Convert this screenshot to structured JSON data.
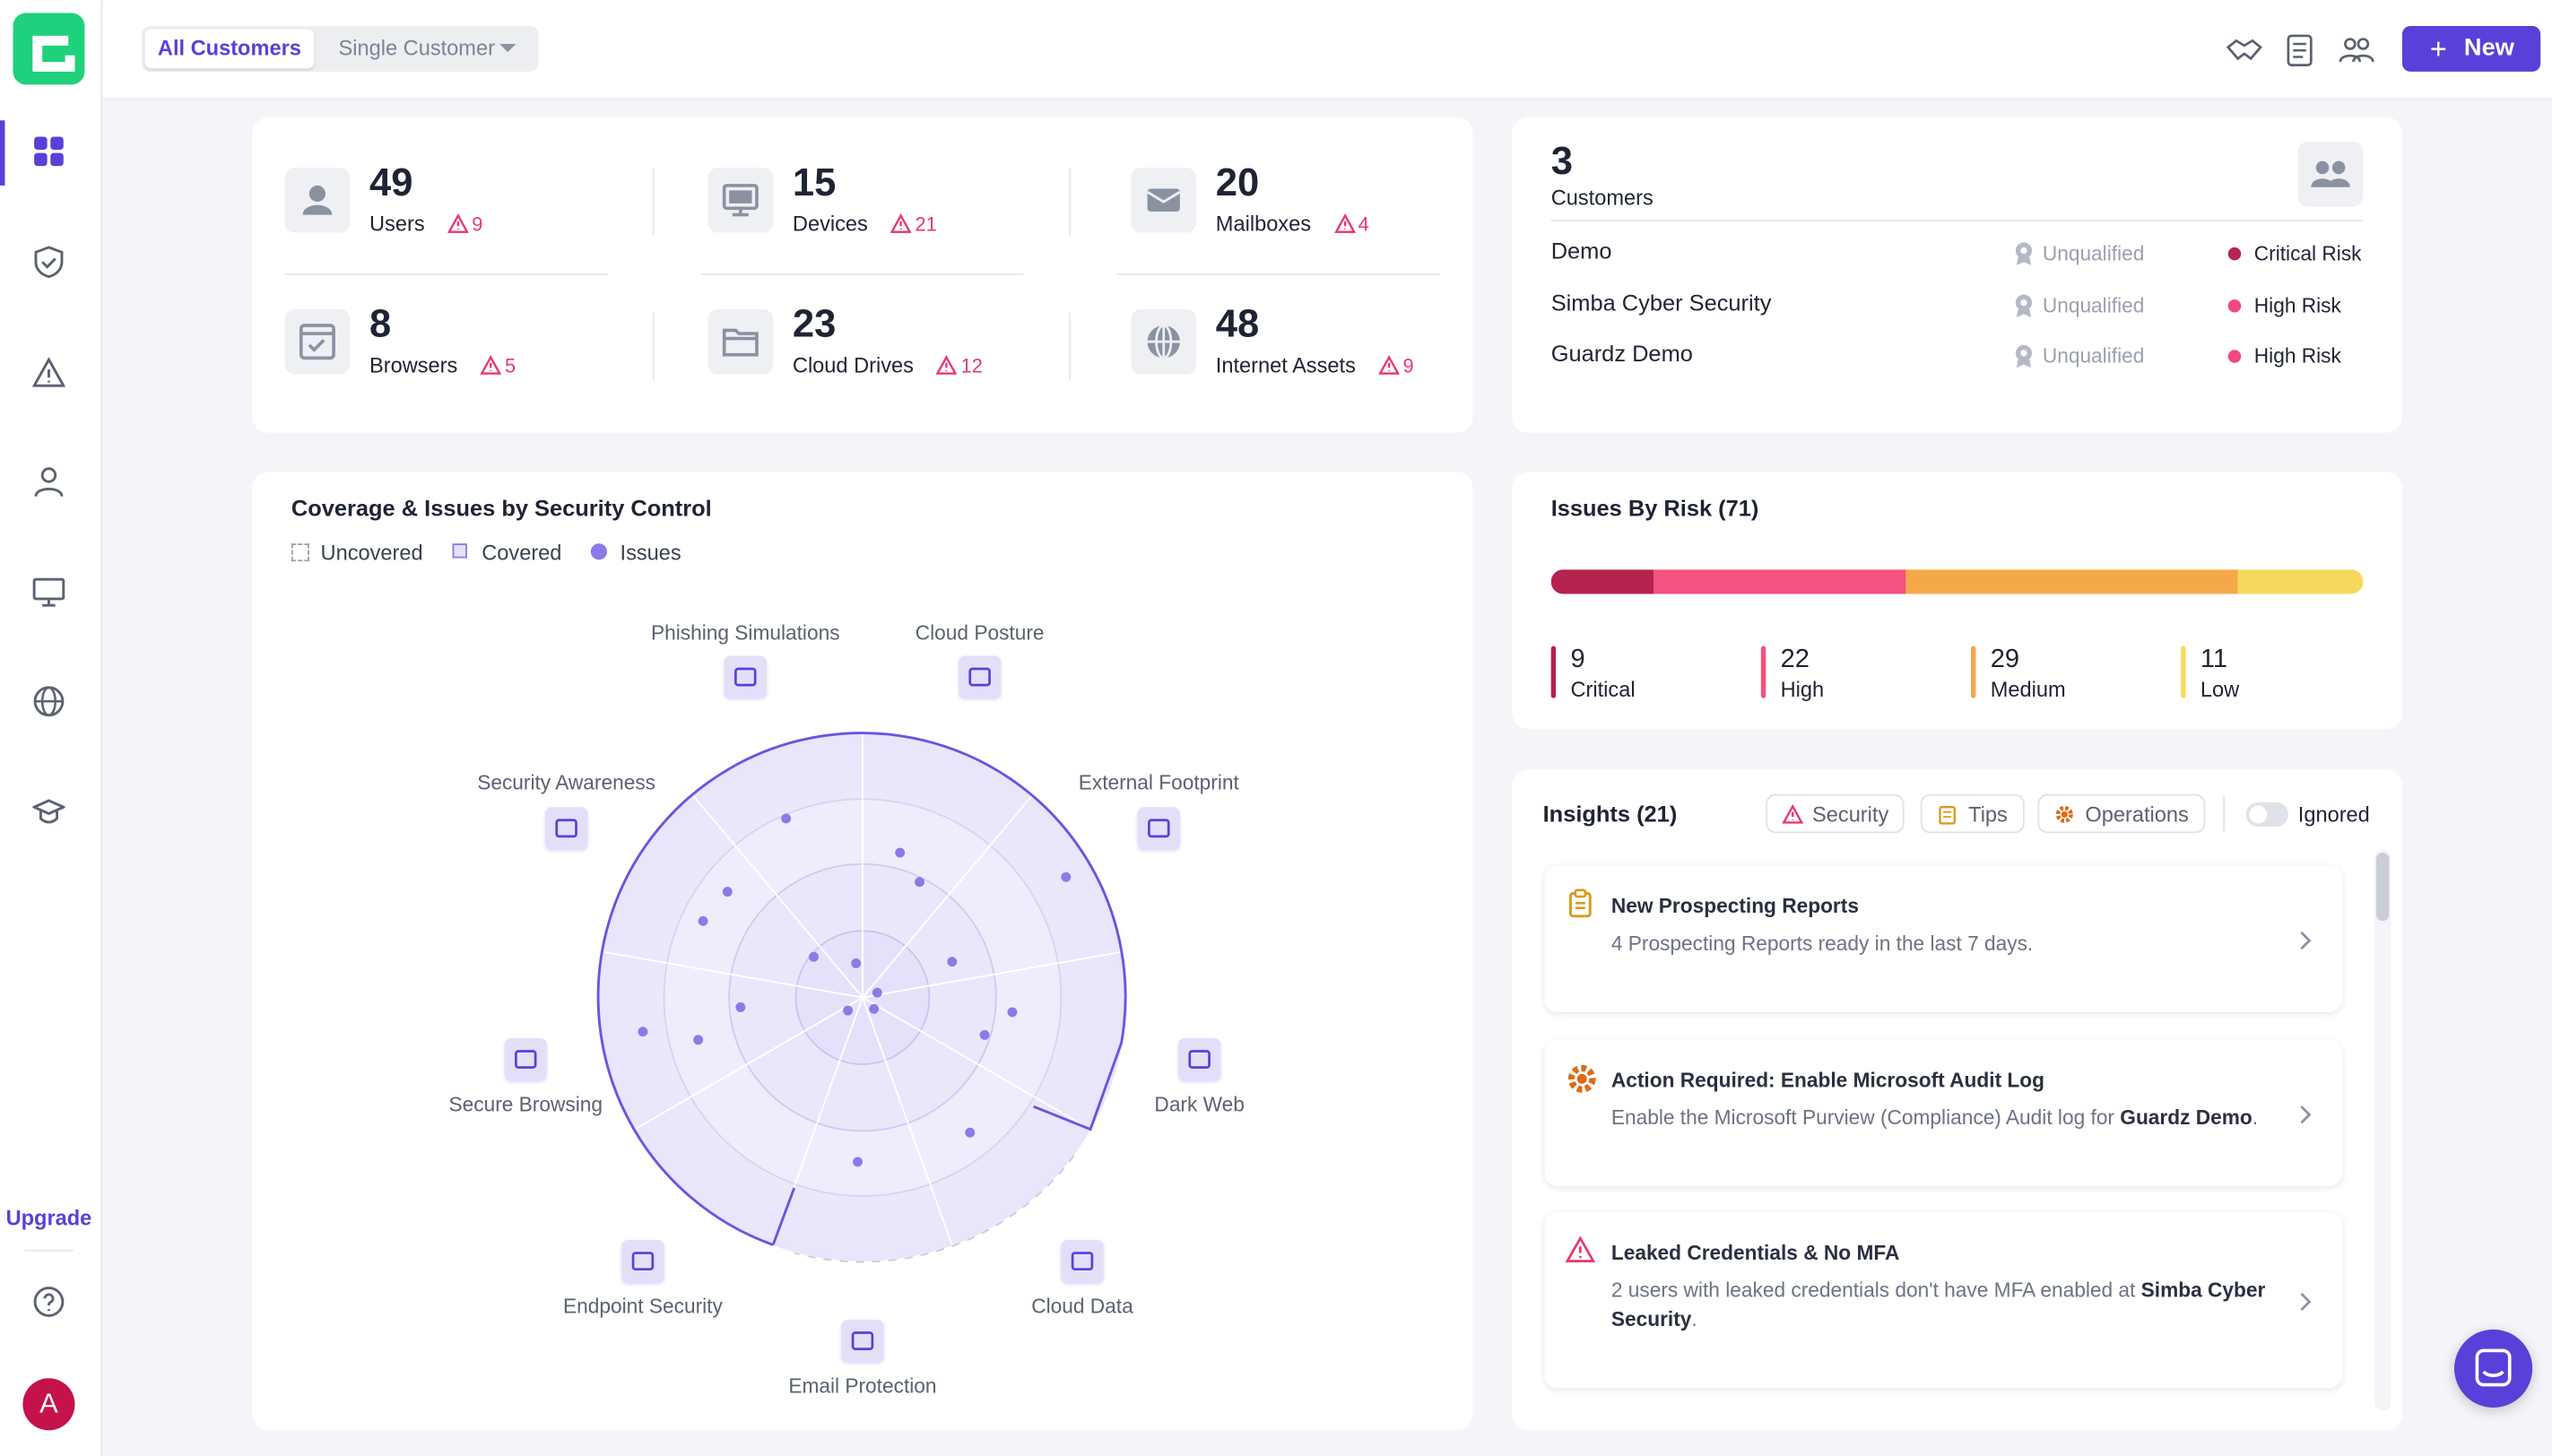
{
  "header": {
    "tabs": [
      "All Customers",
      "Single Customer"
    ],
    "new_button": "New"
  },
  "sidebar": {
    "upgrade": "Upgrade",
    "avatar": "A"
  },
  "assets": [
    {
      "count": 49,
      "label": "Users",
      "alerts": 9
    },
    {
      "count": 15,
      "label": "Devices",
      "alerts": 21
    },
    {
      "count": 20,
      "label": "Mailboxes",
      "alerts": 4
    },
    {
      "count": 8,
      "label": "Browsers",
      "alerts": 5
    },
    {
      "count": 23,
      "label": "Cloud Drives",
      "alerts": 12
    },
    {
      "count": 48,
      "label": "Internet Assets",
      "alerts": 9
    }
  ],
  "customers": {
    "count": 3,
    "label": "Customers",
    "rows": [
      {
        "name": "Demo",
        "status": "Unqualified",
        "risk": "Critical Risk",
        "risk_color": "#b5234f"
      },
      {
        "name": "Simba Cyber Security",
        "status": "Unqualified",
        "risk": "High Risk",
        "risk_color": "#f04a7f"
      },
      {
        "name": "Guardz Demo",
        "status": "Unqualified",
        "risk": "High Risk",
        "risk_color": "#f04a7f"
      }
    ]
  },
  "coverage": {
    "title": "Coverage & Issues by Security Control",
    "legend": [
      "Uncovered",
      "Covered",
      "Issues"
    ],
    "controls": [
      "Phishing Simulations",
      "Cloud Posture",
      "External Footprint",
      "Dark Web",
      "Cloud Data",
      "Email Protection",
      "Endpoint Security",
      "Secure Browsing",
      "Security Awareness"
    ]
  },
  "issues_by_risk": {
    "title": "Issues By Risk (71)",
    "levels": [
      {
        "value": 9,
        "label": "Critical",
        "color": "#b5234f"
      },
      {
        "value": 22,
        "label": "High",
        "color": "#f4527f"
      },
      {
        "value": 29,
        "label": "Medium",
        "color": "#f5a84a"
      },
      {
        "value": 11,
        "label": "Low",
        "color": "#f5d95a"
      }
    ]
  },
  "insights": {
    "title": "Insights (21)",
    "filters": [
      "Security",
      "Tips",
      "Operations"
    ],
    "toggle": "Ignored",
    "cards": [
      {
        "title": "New Prospecting Reports",
        "text": "4 Prospecting Reports ready in the last 7 days."
      },
      {
        "title": "Action Required: Enable Microsoft Audit Log",
        "text": "Enable the Microsoft Purview (Compliance) Audit log for ",
        "bold": "Guardz Demo",
        "after": "."
      },
      {
        "title": "Leaked Credentials & No MFA",
        "text": "2 users with leaked credentials don't have MFA enabled at ",
        "bold": "Simba Cyber Security",
        "after": "."
      }
    ]
  }
}
